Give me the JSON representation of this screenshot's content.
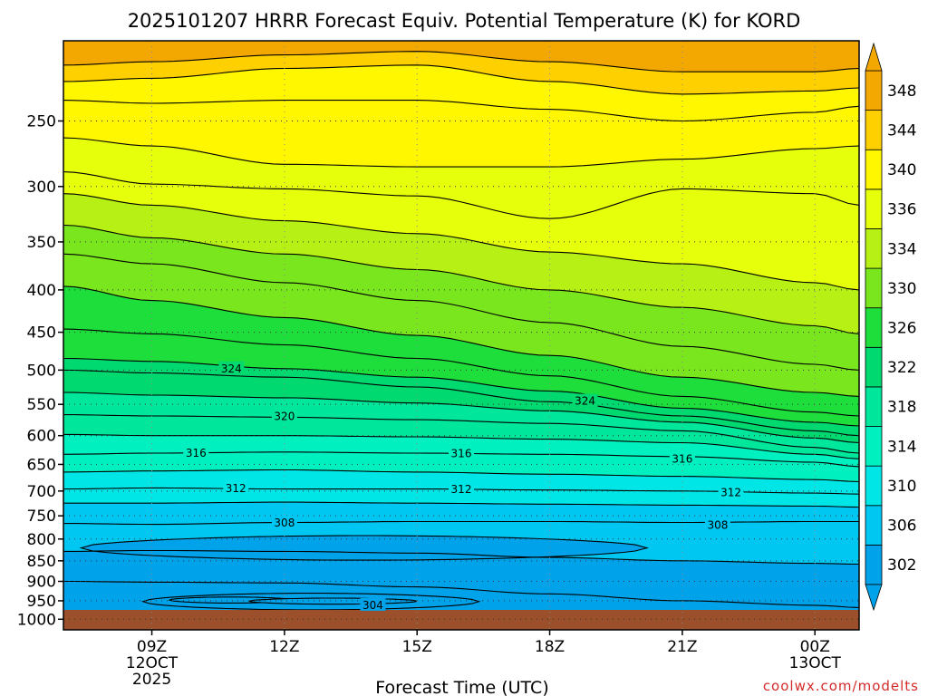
{
  "title": "2025101207 HRRR Forecast Equiv. Potential Temperature (K) for KORD",
  "credit": "coolwx.com/modelts",
  "chart_data": {
    "type": "heatmap",
    "title": "2025101207 HRRR Forecast Equiv. Potential Temperature (K) for KORD",
    "xlabel": "Forecast Time (UTC)",
    "ylabel": "",
    "x_ticks": [
      {
        "label": "09Z",
        "sub": [
          "12OCT",
          "2025"
        ]
      },
      {
        "label": "12Z",
        "sub": []
      },
      {
        "label": "15Z",
        "sub": []
      },
      {
        "label": "18Z",
        "sub": []
      },
      {
        "label": "21Z",
        "sub": []
      },
      {
        "label": "00Z",
        "sub": [
          "13OCT"
        ]
      }
    ],
    "y_axis": {
      "scale": "log-pressure",
      "reversed": true,
      "range_hpa": [
        1030,
        200
      ],
      "ticks": [
        250,
        300,
        350,
        400,
        450,
        500,
        550,
        600,
        650,
        700,
        750,
        800,
        850,
        900,
        950,
        1000
      ]
    },
    "grid": true,
    "colorbar": {
      "location": "right",
      "levels": [
        302,
        306,
        310,
        314,
        318,
        322,
        326,
        330,
        334,
        336,
        340,
        344,
        348
      ],
      "colors": [
        "#00a2ea",
        "#00c6f2",
        "#00e6e6",
        "#00f0c0",
        "#00e69a",
        "#00d870",
        "#1ede3c",
        "#7ae61e",
        "#b6f014",
        "#e6ff0a",
        "#fff700",
        "#ffd000",
        "#f2a800"
      ]
    },
    "surface_color": "#9b4f2a",
    "x_range_hours": [
      7,
      25
    ],
    "times_hours": [
      7,
      9,
      12,
      15,
      18,
      21,
      24,
      25
    ],
    "contours": [
      {
        "value": 348,
        "p": [
          214,
          212,
          208,
          206,
          212,
          218,
          218,
          216
        ]
      },
      {
        "value": 344,
        "p": [
          224,
          222,
          216,
          214,
          224,
          232,
          230,
          228
        ]
      },
      {
        "value": 342,
        "p": [
          236,
          238,
          236,
          236,
          242,
          250,
          244,
          240
        ]
      },
      {
        "value": 340,
        "p": [
          262,
          268,
          282,
          284,
          284,
          278,
          270,
          268
        ]
      },
      {
        "value": 338,
        "p": [
          288,
          298,
          302,
          308,
          328,
          302,
          306,
          316
        ]
      },
      {
        "value": 336,
        "p": [
          306,
          316,
          330,
          342,
          360,
          372,
          392,
          400
        ]
      },
      {
        "value": 334,
        "p": [
          334,
          346,
          362,
          378,
          400,
          420,
          442,
          452
        ]
      },
      {
        "value": 332,
        "p": [
          362,
          372,
          392,
          412,
          438,
          468,
          492,
          500
        ]
      },
      {
        "value": 330,
        "p": [
          396,
          412,
          432,
          454,
          480,
          510,
          532,
          538
        ]
      },
      {
        "value": 328,
        "p": [
          446,
          452,
          466,
          484,
          508,
          538,
          562,
          568
        ]
      },
      {
        "value": 326,
        "p": [
          484,
          488,
          498,
          510,
          530,
          556,
          578,
          584
        ]
      },
      {
        "value": 324,
        "p": [
          500,
          504,
          510,
          524,
          546,
          568,
          592,
          600
        ]
      },
      {
        "value": 322,
        "p": [
          532,
          536,
          540,
          548,
          560,
          578,
          604,
          612
        ]
      },
      {
        "value": 320,
        "p": [
          566,
          568,
          570,
          574,
          580,
          592,
          620,
          630
        ]
      },
      {
        "value": 318,
        "p": [
          598,
          600,
          600,
          602,
          606,
          612,
          632,
          640
        ]
      },
      {
        "value": 316,
        "p": [
          632,
          630,
          628,
          630,
          632,
          636,
          646,
          654
        ]
      },
      {
        "value": 314,
        "p": [
          664,
          662,
          660,
          664,
          668,
          672,
          678,
          682
        ]
      },
      {
        "value": 312,
        "p": [
          696,
          694,
          696,
          696,
          698,
          700,
          704,
          706
        ]
      },
      {
        "value": 310,
        "p": [
          724,
          724,
          722,
          724,
          726,
          728,
          730,
          732
        ]
      },
      {
        "value": 308,
        "p": [
          766,
          768,
          764,
          762,
          762,
          764,
          762,
          762
        ]
      },
      {
        "value": 306,
        "p": [
          828,
          826,
          828,
          832,
          842,
          850,
          856,
          858
        ]
      },
      {
        "value": 304,
        "p": [
          900,
          902,
          904,
          914,
          932,
          950,
          962,
          968
        ]
      }
    ],
    "contour_labels": [
      {
        "value": 324,
        "t": 10.8,
        "p": 498
      },
      {
        "value": 324,
        "t": 18.8,
        "p": 545
      },
      {
        "value": 320,
        "t": 12.0,
        "p": 569
      },
      {
        "value": 316,
        "t": 10.0,
        "p": 630
      },
      {
        "value": 316,
        "t": 16.0,
        "p": 631
      },
      {
        "value": 316,
        "t": 21.0,
        "p": 640
      },
      {
        "value": 312,
        "t": 10.9,
        "p": 695
      },
      {
        "value": 312,
        "t": 16.0,
        "p": 697
      },
      {
        "value": 312,
        "t": 22.1,
        "p": 703
      },
      {
        "value": 308,
        "t": 12.0,
        "p": 765
      },
      {
        "value": 308,
        "t": 21.8,
        "p": 770
      },
      {
        "value": 304,
        "t": 14.0,
        "p": 962
      }
    ],
    "cold_pockets": [
      {
        "value": 305,
        "t_range": [
          7.4,
          20.2
        ],
        "p_center": 820,
        "p_half_width": 28
      },
      {
        "value": 303,
        "t_range": [
          8.8,
          16.4
        ],
        "p_center": 952,
        "p_half_width": 22
      },
      {
        "value": 302,
        "t_range": [
          9.4,
          12.2
        ],
        "p_center": 948,
        "p_half_width": 8
      },
      {
        "value": 302,
        "t_range": [
          11.2,
          15.0
        ],
        "p_center": 951,
        "p_half_width": 8
      }
    ]
  }
}
